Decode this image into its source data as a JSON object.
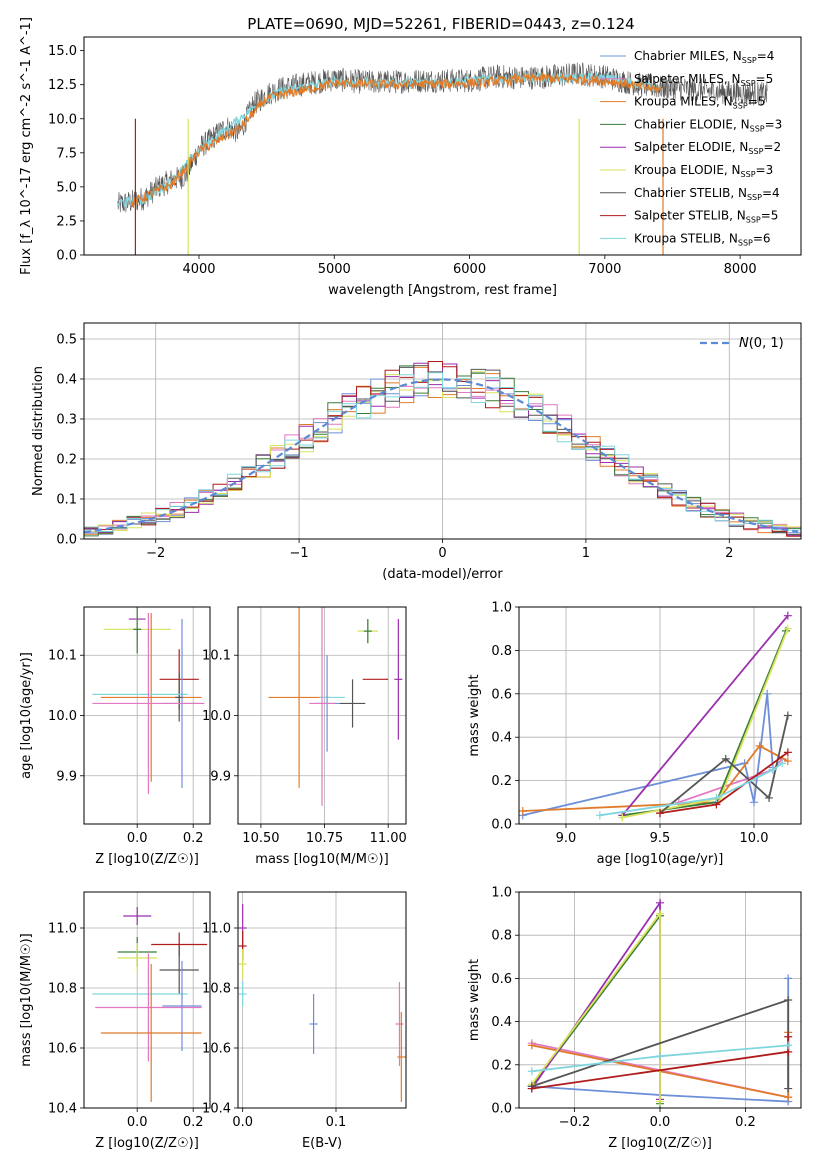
{
  "figure_title": "PLATE=0690, MJD=52261, FIBERID=0443, z=0.124",
  "colors": {
    "Chabrier MILES": "#6d8fd8",
    "Salpeter MILES": "#e377c2",
    "Kroupa MILES": "#e07b2a",
    "Chabrier ELODIE": "#3a7d3a",
    "Salpeter ELODIE": "#9b2fae",
    "Kroupa ELODIE": "#d7e35a",
    "Chabrier STELIB": "#555555",
    "Salpeter STELIB": "#b01c1c",
    "Kroupa STELIB": "#7fd6de"
  },
  "chart_data": [
    {
      "id": "spectrum",
      "type": "line",
      "title": "PLATE=0690, MJD=52261, FIBERID=0443, z=0.124",
      "xlabel": "wavelength [Angstrom, rest frame]",
      "ylabel": "Flux [f_λ 10^-17 erg cm^-2 s^-1 A^-1]",
      "xlim": [
        3150,
        8450
      ],
      "ylim": [
        0,
        16
      ],
      "xticks": [
        4000,
        5000,
        6000,
        7000,
        8000
      ],
      "yticks": [
        0.0,
        2.5,
        5.0,
        7.5,
        10.0,
        12.5,
        15.0
      ],
      "legend_position": "top-right",
      "legend": [
        {
          "label": "Chabrier MILES, N_SSP=4",
          "key": "Chabrier MILES"
        },
        {
          "label": "Salpeter MILES, N_SSP=5",
          "key": "Salpeter MILES"
        },
        {
          "label": "Kroupa MILES, N_SSP=5",
          "key": "Kroupa MILES"
        },
        {
          "label": "Chabrier ELODIE, N_SSP=3",
          "key": "Chabrier ELODIE"
        },
        {
          "label": "Salpeter ELODIE, N_SSP=2",
          "key": "Salpeter ELODIE"
        },
        {
          "label": "Kroupa ELODIE, N_SSP=3",
          "key": "Kroupa ELODIE"
        },
        {
          "label": "Chabrier STELIB, N_SSP=4",
          "key": "Chabrier STELIB"
        },
        {
          "label": "Salpeter STELIB, N_SSP=5",
          "key": "Salpeter STELIB"
        },
        {
          "label": "Kroupa STELIB, N_SSP=6",
          "key": "Kroupa STELIB"
        }
      ],
      "series": [
        {
          "key": "Chabrier STELIB",
          "x": [
            3400,
            3500,
            3600,
            3700,
            3800,
            3900,
            4000,
            4100,
            4200,
            4300,
            4400,
            4500,
            4600,
            4800,
            5000,
            5200,
            5400,
            5600,
            5800,
            6000,
            6200,
            6400,
            6600,
            6800,
            7000,
            7200,
            7400,
            7600,
            7800,
            8000,
            8200
          ],
          "y": [
            3.7,
            3.9,
            4.2,
            5.0,
            5.5,
            5.8,
            7.8,
            8.6,
            9.4,
            9.0,
            11.0,
            11.8,
            12.2,
            12.6,
            12.9,
            12.7,
            12.7,
            12.8,
            12.8,
            12.8,
            13.1,
            13.0,
            13.1,
            13.3,
            13.1,
            12.6,
            12.3,
            12.2,
            12.0,
            11.9,
            11.8
          ]
        },
        {
          "key": "Kroupa STELIB",
          "x": [
            3400,
            3600,
            3800,
            4000,
            4200,
            4400,
            4600,
            5000,
            5400,
            5800,
            6200,
            6600,
            7000,
            7400
          ],
          "y": [
            3.8,
            4.1,
            5.4,
            7.7,
            9.2,
            10.8,
            12.0,
            12.7,
            12.6,
            12.7,
            12.9,
            13.0,
            13.0,
            12.3
          ]
        },
        {
          "key": "Kroupa MILES",
          "x": [
            3500,
            3800,
            4000,
            4300,
            4500,
            5000,
            5500,
            6000,
            6500,
            7000,
            7420
          ],
          "y": [
            3.8,
            5.2,
            7.6,
            9.3,
            11.5,
            12.6,
            12.5,
            12.6,
            13.0,
            12.8,
            12.1
          ]
        }
      ],
      "verticals": [
        {
          "x": 3530,
          "key": "Salpeter STELIB"
        },
        {
          "x": 3920,
          "key": "Kroupa ELODIE"
        },
        {
          "x": 6810,
          "key": "Kroupa ELODIE"
        },
        {
          "x": 7430,
          "key": "Kroupa MILES"
        }
      ]
    },
    {
      "id": "residuals",
      "type": "line",
      "xlabel": "(data-model)/error",
      "ylabel": "Normed distribution",
      "xlim": [
        -2.5,
        2.5
      ],
      "ylim": [
        0,
        0.54
      ],
      "xticks": [
        -2,
        -1,
        0,
        1,
        2
      ],
      "yticks": [
        0.0,
        0.1,
        0.2,
        0.3,
        0.4,
        0.5
      ],
      "grid": true,
      "legend_position": "top-right",
      "legend_label": "N(0,1)",
      "bin_width": 0.1,
      "reference": {
        "name": "N(0,1)",
        "mean": 0,
        "sigma": 1,
        "color": "#5b8bd6"
      },
      "grid_color": "#b0b0b0"
    },
    {
      "id": "age-vs-z",
      "type": "scatter",
      "xlabel": "Z [log10(Z/Z☉)]",
      "ylabel": "age [log10(age/yr)]",
      "xlim": [
        -0.19,
        0.26
      ],
      "ylim": [
        9.82,
        10.18
      ],
      "xticks": [
        0.0,
        0.2
      ],
      "yticks": [
        9.9,
        10.0,
        10.1
      ],
      "grid": true,
      "points": [
        {
          "key": "Salpeter ELODIE",
          "x": 0.0,
          "y": 10.16,
          "xerr": 0.03,
          "yerr": 0.0
        },
        {
          "key": "Kroupa ELODIE",
          "x": 0.0,
          "y": 10.143,
          "xerr": 0.12,
          "yerr": 0.02
        },
        {
          "key": "Chabrier ELODIE",
          "x": 0.0,
          "y": 10.143,
          "xerr": 0.0,
          "yerr": 0.04
        },
        {
          "key": "Kroupa MILES",
          "x": 0.05,
          "y": 10.03,
          "xerr": 0.18,
          "yerr": 0.14
        },
        {
          "key": "Salpeter STELIB",
          "x": 0.15,
          "y": 10.06,
          "xerr": 0.07,
          "yerr": 0.05
        },
        {
          "key": "Chabrier STELIB",
          "x": 0.15,
          "y": 10.03,
          "xerr": 0.0,
          "yerr": 0.04
        },
        {
          "key": "Kroupa STELIB",
          "x": 0.01,
          "y": 10.035,
          "xerr": 0.17,
          "yerr": 0.0
        },
        {
          "key": "Chabrier MILES",
          "x": 0.16,
          "y": 10.02,
          "xerr": 0.07,
          "yerr": 0.14
        },
        {
          "key": "Salpeter MILES",
          "x": 0.04,
          "y": 10.02,
          "xerr": 0.2,
          "yerr": 0.15
        }
      ]
    },
    {
      "id": "age-vs-mass",
      "type": "scatter",
      "xlabel": "mass [log10(M/M☉)]",
      "ylabel": "",
      "xlim": [
        10.41,
        11.07
      ],
      "ylim": [
        9.82,
        10.18
      ],
      "xticks": [
        10.5,
        10.75,
        11.0
      ],
      "yticks": [
        9.9,
        10.0,
        10.1
      ],
      "grid": true,
      "points": [
        {
          "key": "Salpeter ELODIE",
          "x": 11.04,
          "y": 10.06,
          "xerr": 0.0,
          "yerr": 0.1
        },
        {
          "key": "Kroupa ELODIE",
          "x": 10.92,
          "y": 10.14,
          "xerr": 0.04,
          "yerr": 0.02
        },
        {
          "key": "Chabrier ELODIE",
          "x": 10.92,
          "y": 10.14,
          "xerr": 0.0,
          "yerr": 0.02
        },
        {
          "key": "Kroupa MILES",
          "x": 10.65,
          "y": 10.03,
          "xerr": 0.12,
          "yerr": 0.15
        },
        {
          "key": "Salpeter STELIB",
          "x": 10.95,
          "y": 10.06,
          "xerr": 0.05,
          "yerr": 0.0
        },
        {
          "key": "Chabrier STELIB",
          "x": 10.86,
          "y": 10.02,
          "xerr": 0.05,
          "yerr": 0.04
        },
        {
          "key": "Kroupa STELIB",
          "x": 10.78,
          "y": 10.03,
          "xerr": 0.05,
          "yerr": 0.0
        },
        {
          "key": "Chabrier MILES",
          "x": 10.76,
          "y": 10.02,
          "xerr": 0.05,
          "yerr": 0.08
        },
        {
          "key": "Salpeter MILES",
          "x": 10.74,
          "y": 10.02,
          "xerr": 0.05,
          "yerr": 0.17
        }
      ]
    },
    {
      "id": "weight-vs-age",
      "type": "line",
      "xlabel": "age [log10(age/yr)]",
      "ylabel": "mass weight",
      "xlim": [
        8.75,
        10.25
      ],
      "ylim": [
        0,
        1
      ],
      "xticks": [
        9.0,
        9.5,
        10.0
      ],
      "yticks": [
        0.0,
        0.2,
        0.4,
        0.6,
        0.8,
        1.0
      ],
      "grid": true,
      "series": [
        {
          "key": "Chabrier MILES",
          "x": [
            8.77,
            9.95,
            10.0,
            10.07,
            10.1
          ],
          "y": [
            0.04,
            0.28,
            0.1,
            0.6,
            0.26
          ]
        },
        {
          "key": "Salpeter MILES",
          "x": [
            9.6,
            10.1,
            10.15
          ],
          "y": [
            0.1,
            0.25,
            0.3
          ]
        },
        {
          "key": "Kroupa MILES",
          "x": [
            8.77,
            9.8,
            10.03,
            10.18
          ],
          "y": [
            0.06,
            0.1,
            0.36,
            0.29
          ]
        },
        {
          "key": "Chabrier ELODIE",
          "x": [
            9.3,
            9.8,
            10.17
          ],
          "y": [
            0.04,
            0.1,
            0.89
          ]
        },
        {
          "key": "Salpeter ELODIE",
          "x": [
            9.3,
            10.18
          ],
          "y": [
            0.04,
            0.96
          ]
        },
        {
          "key": "Kroupa ELODIE",
          "x": [
            9.3,
            9.82,
            10.18
          ],
          "y": [
            0.03,
            0.12,
            0.9
          ]
        },
        {
          "key": "Chabrier STELIB",
          "x": [
            9.5,
            9.85,
            10.08,
            10.18
          ],
          "y": [
            0.05,
            0.3,
            0.12,
            0.5
          ]
        },
        {
          "key": "Salpeter STELIB",
          "x": [
            9.5,
            9.8,
            10.18
          ],
          "y": [
            0.05,
            0.09,
            0.33
          ]
        },
        {
          "key": "Kroupa STELIB",
          "x": [
            9.18,
            9.8,
            10.1,
            10.15
          ],
          "y": [
            0.04,
            0.12,
            0.25,
            0.28
          ]
        }
      ]
    },
    {
      "id": "mass-vs-z",
      "type": "scatter",
      "xlabel": "Z [log10(Z/Z☉)]",
      "ylabel": "mass [log10(M/M☉)]",
      "xlim": [
        -0.19,
        0.26
      ],
      "ylim": [
        10.4,
        11.12
      ],
      "xticks": [
        0.0,
        0.2
      ],
      "yticks": [
        10.4,
        10.6,
        10.8,
        11.0
      ],
      "grid": true,
      "points": [
        {
          "key": "Salpeter ELODIE",
          "x": 0.0,
          "y": 11.04,
          "xerr": 0.05,
          "yerr": 0.03
        },
        {
          "key": "Chabrier ELODIE",
          "x": 0.0,
          "y": 10.92,
          "xerr": 0.07,
          "yerr": 0.05
        },
        {
          "key": "Kroupa ELODIE",
          "x": 0.0,
          "y": 10.9,
          "xerr": 0.07,
          "yerr": 0.05
        },
        {
          "key": "Salpeter STELIB",
          "x": 0.15,
          "y": 10.945,
          "xerr": 0.1,
          "yerr": 0.04
        },
        {
          "key": "Chabrier STELIB",
          "x": 0.15,
          "y": 10.86,
          "xerr": 0.07,
          "yerr": 0.08
        },
        {
          "key": "Kroupa STELIB",
          "x": 0.01,
          "y": 10.78,
          "xerr": 0.17,
          "yerr": 0.0
        },
        {
          "key": "Chabrier MILES",
          "x": 0.16,
          "y": 10.74,
          "xerr": 0.07,
          "yerr": 0.15
        },
        {
          "key": "Salpeter MILES",
          "x": 0.04,
          "y": 10.735,
          "xerr": 0.19,
          "yerr": 0.18
        },
        {
          "key": "Kroupa MILES",
          "x": 0.05,
          "y": 10.65,
          "xerr": 0.18,
          "yerr": 0.23
        }
      ]
    },
    {
      "id": "mass-vs-ebv",
      "type": "scatter",
      "xlabel": "E(B-V)",
      "ylabel": "",
      "xlim": [
        -0.005,
        0.175
      ],
      "ylim": [
        10.4,
        11.12
      ],
      "xticks": [
        0.0,
        0.1
      ],
      "yticks": [
        10.4,
        10.6,
        10.8,
        11.0
      ],
      "grid": true,
      "points": [
        {
          "key": "Salpeter ELODIE",
          "x": 0.0,
          "y": 11.0,
          "xerr": 0.0,
          "yerr": 0.08
        },
        {
          "key": "Salpeter STELIB",
          "x": 0.0,
          "y": 10.94,
          "xerr": 0.0,
          "yerr": 0.05
        },
        {
          "key": "Kroupa ELODIE",
          "x": 0.0,
          "y": 10.88,
          "xerr": 0.0,
          "yerr": 0.05
        },
        {
          "key": "Kroupa STELIB",
          "x": 0.0,
          "y": 10.78,
          "xerr": 0.0,
          "yerr": 0.04
        },
        {
          "key": "Chabrier MILES",
          "x": 0.076,
          "y": 10.68,
          "xerr": 0.0,
          "yerr": 0.1
        },
        {
          "key": "Salpeter MILES",
          "x": 0.168,
          "y": 10.68,
          "xerr": 0.0,
          "yerr": 0.14
        },
        {
          "key": "Kroupa MILES",
          "x": 0.17,
          "y": 10.57,
          "xerr": 0.0,
          "yerr": 0.15
        }
      ]
    },
    {
      "id": "weight-vs-z",
      "type": "line",
      "xlabel": "Z [log10(Z/Z☉)]",
      "ylabel": "mass weight",
      "xlim": [
        -0.33,
        0.33
      ],
      "ylim": [
        0,
        1
      ],
      "xticks": [
        -0.2,
        0.0,
        0.2
      ],
      "yticks": [
        0.0,
        0.2,
        0.4,
        0.6,
        0.8,
        1.0
      ],
      "grid": true,
      "series": [
        {
          "key": "Chabrier MILES",
          "x": [
            -0.3,
            0.0,
            0.3,
            0.3
          ],
          "y": [
            0.1,
            0.06,
            0.03,
            0.6
          ]
        },
        {
          "key": "Salpeter MILES",
          "x": [
            -0.3,
            0.3
          ],
          "y": [
            0.3,
            0.05
          ]
        },
        {
          "key": "Kroupa MILES",
          "x": [
            -0.3,
            0.3,
            0.3
          ],
          "y": [
            0.29,
            0.05,
            0.35
          ]
        },
        {
          "key": "Chabrier ELODIE",
          "x": [
            -0.3,
            0.0,
            0.0
          ],
          "y": [
            0.1,
            0.89,
            0.02
          ]
        },
        {
          "key": "Salpeter ELODIE",
          "x": [
            -0.3,
            0.0,
            0.0
          ],
          "y": [
            0.09,
            0.95,
            0.04
          ]
        },
        {
          "key": "Kroupa ELODIE",
          "x": [
            -0.3,
            0.0,
            0.0
          ],
          "y": [
            0.11,
            0.9,
            0.03
          ]
        },
        {
          "key": "Chabrier STELIB",
          "x": [
            -0.3,
            0.3,
            0.3
          ],
          "y": [
            0.1,
            0.5,
            0.09
          ]
        },
        {
          "key": "Salpeter STELIB",
          "x": [
            -0.3,
            0.3,
            0.3
          ],
          "y": [
            0.09,
            0.26,
            0.33
          ]
        },
        {
          "key": "Kroupa STELIB",
          "x": [
            -0.3,
            0.0,
            0.3
          ],
          "y": [
            0.17,
            0.24,
            0.29
          ]
        }
      ]
    }
  ]
}
